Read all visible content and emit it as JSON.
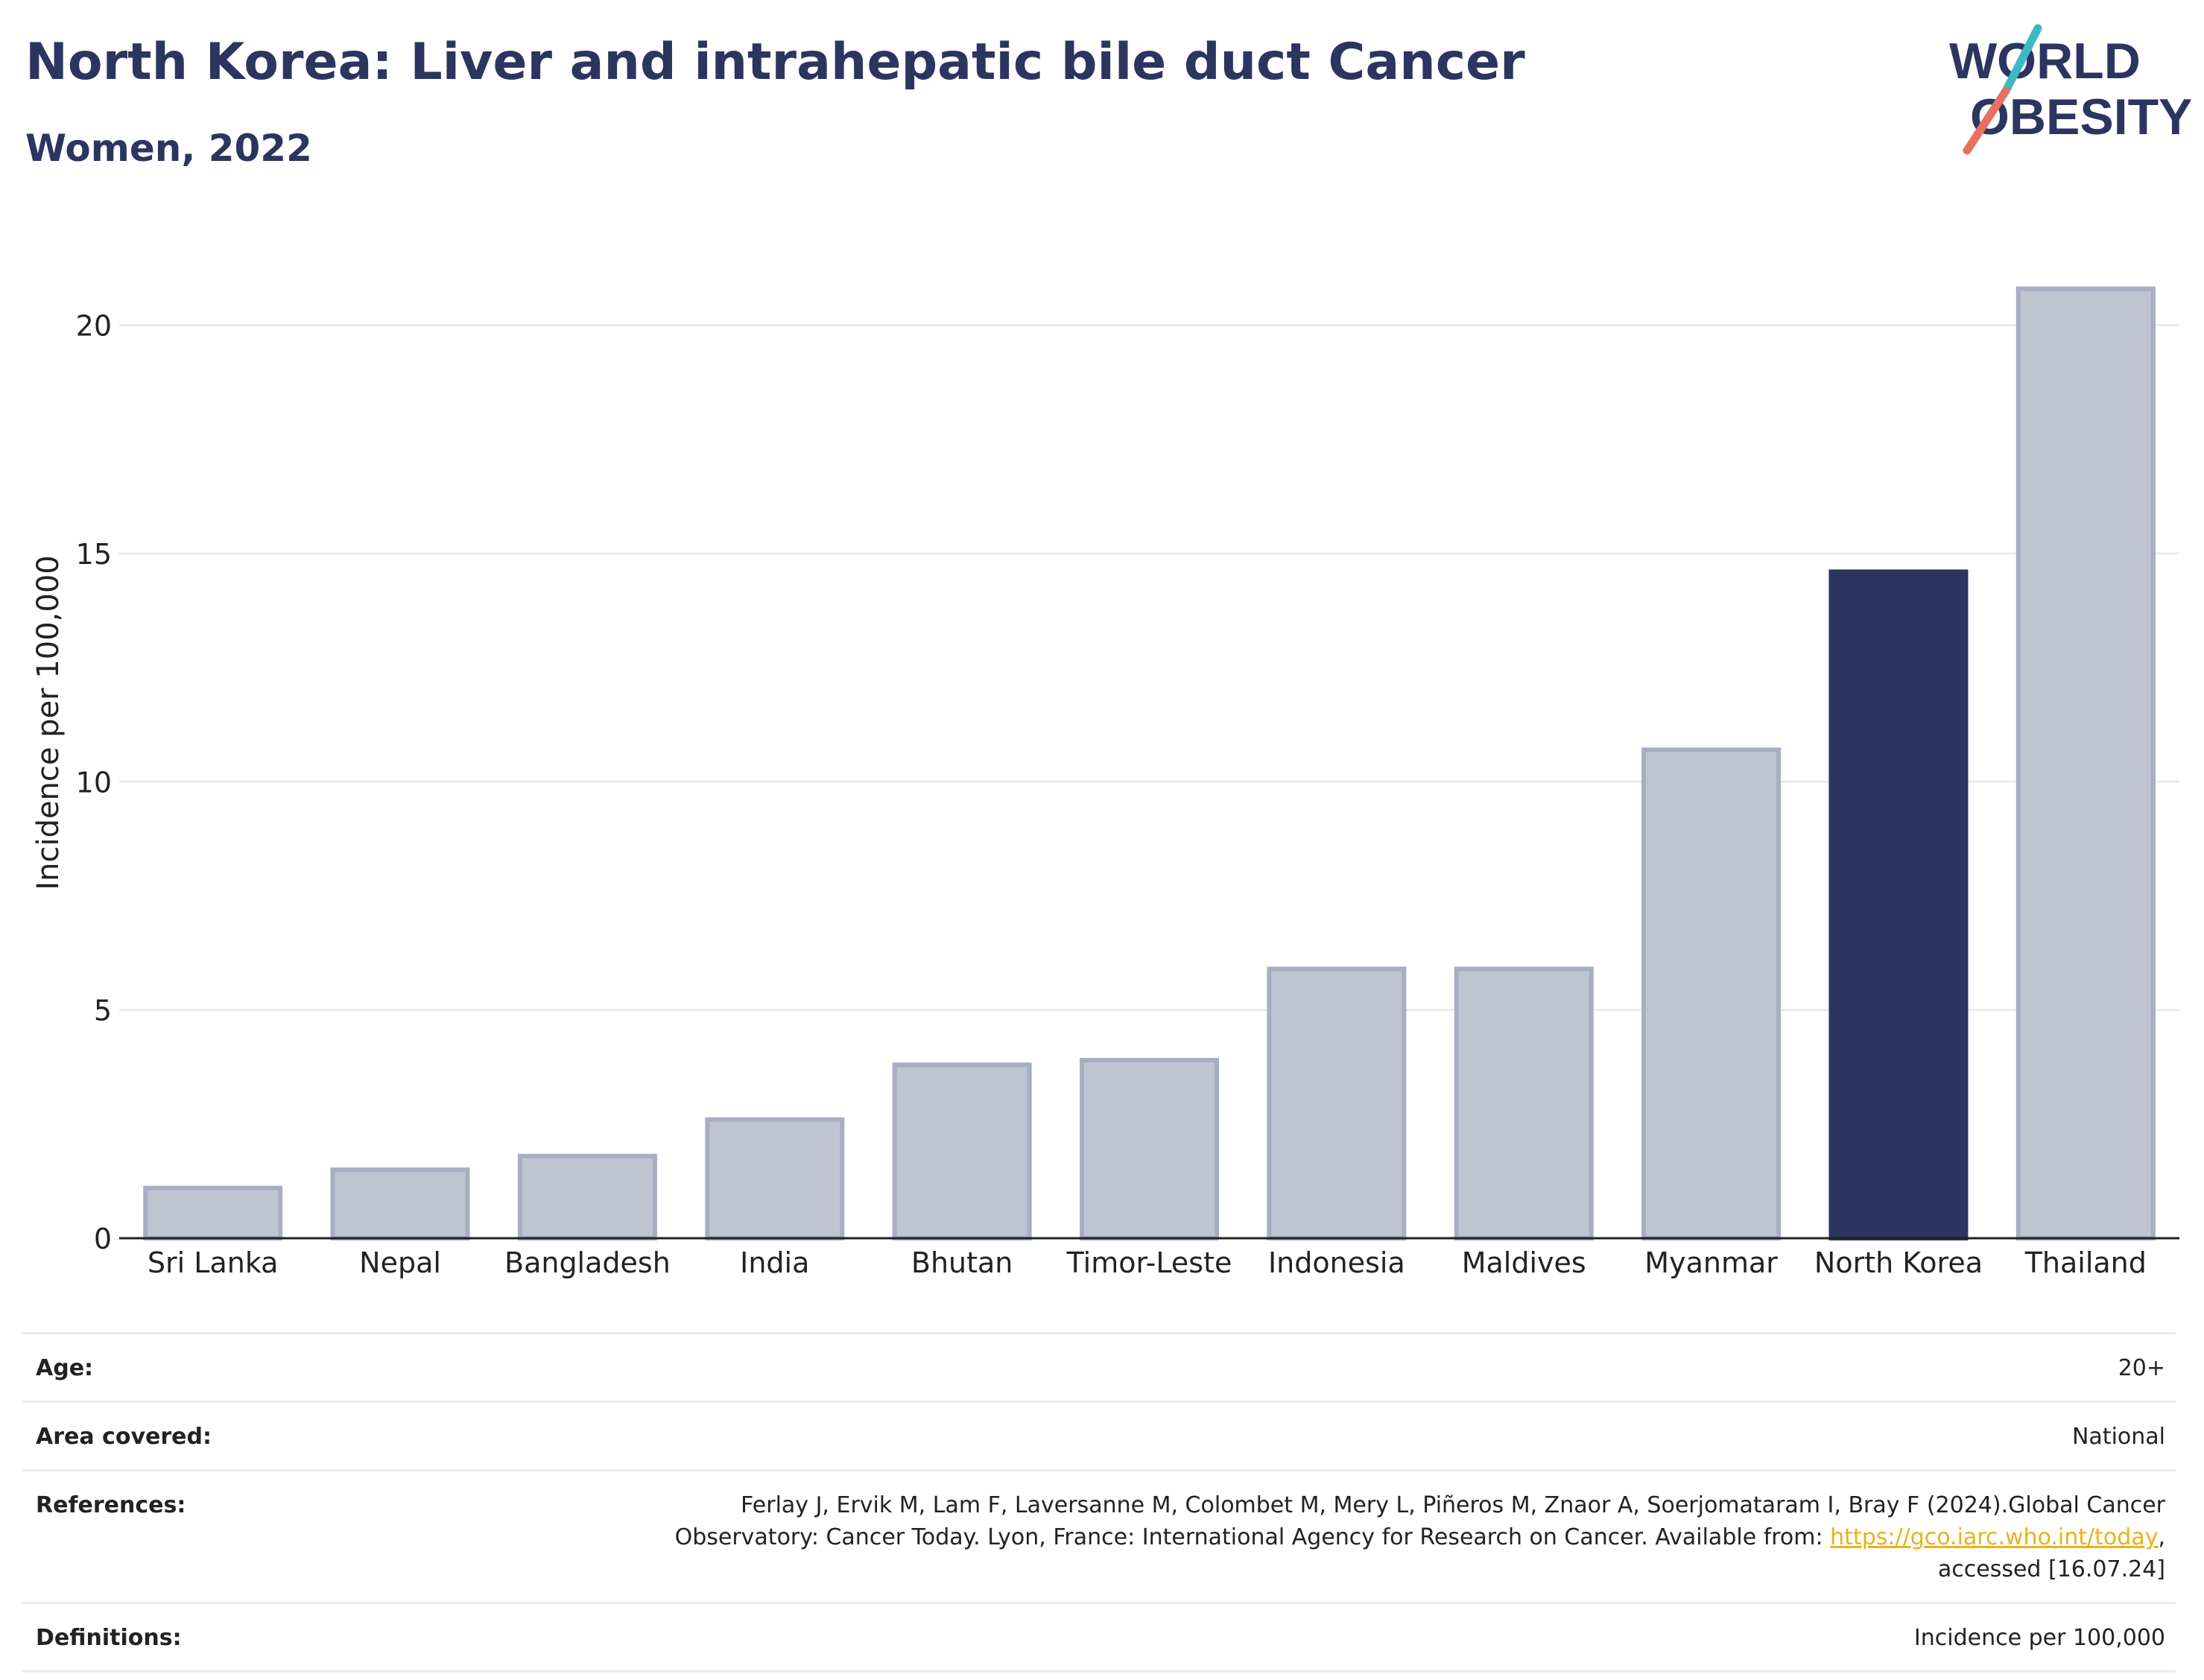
{
  "header": {
    "title": "North Korea: Liver and intrahepatic bile duct Cancer",
    "subtitle": "Women, 2022"
  },
  "logo": {
    "line1": "WORLD",
    "line2": "OBESITY",
    "accent_teal": "#3fb8c4",
    "accent_coral": "#e8705f",
    "text_color": "#2b3560"
  },
  "chart_data": {
    "type": "bar",
    "categories": [
      "Sri Lanka",
      "Nepal",
      "Bangladesh",
      "India",
      "Bhutan",
      "Timor-Leste",
      "Indonesia",
      "Maldives",
      "Myanmar",
      "North Korea",
      "Thailand"
    ],
    "values": [
      1.1,
      1.5,
      1.8,
      2.6,
      3.8,
      3.9,
      5.9,
      5.9,
      10.7,
      14.6,
      20.8
    ],
    "highlight": "North Korea",
    "ylabel": "Incidence per 100,000",
    "xlabel": "",
    "ylim": [
      0,
      22
    ],
    "yticks": [
      0,
      5,
      10,
      15,
      20
    ],
    "grid": true,
    "colors": {
      "bar": "#c0c4d1",
      "bar_border": "#a7adc2",
      "highlight": "#2b3560",
      "grid": "#e6ebf1",
      "axis": "#222222"
    }
  },
  "meta": [
    {
      "label": "Age:",
      "value": "20+"
    },
    {
      "label": "Area covered:",
      "value": "National"
    },
    {
      "label": "References:",
      "value_lines": [
        "Ferlay J, Ervik M, Lam F, Laversanne M, Colombet M, Mery L, Piñeros M, Znaor A, Soerjomataram I, Bray F (2024).Global Cancer",
        "Observatory: Cancer Today. Lyon, France: International Agency for Research on Cancer. Available from: ",
        "accessed [16.07.24]"
      ],
      "link": "https://gco.iarc.who.int/today",
      "link_suffix": ","
    },
    {
      "label": "Definitions:",
      "value": "Incidence per 100,000"
    }
  ]
}
